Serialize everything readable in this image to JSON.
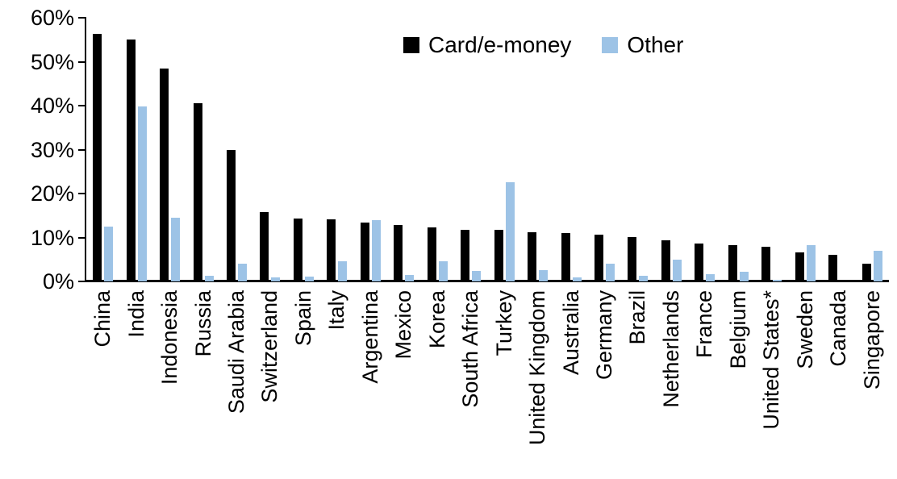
{
  "chart_data": {
    "type": "bar",
    "title": "",
    "xlabel": "",
    "ylabel": "",
    "ylim": [
      0,
      60
    ],
    "ytick_labels": [
      "0%",
      "10%",
      "20%",
      "30%",
      "40%",
      "50%",
      "60%"
    ],
    "ytick_values": [
      0,
      10,
      20,
      30,
      40,
      50,
      60
    ],
    "grid": false,
    "legend_position": "top-center",
    "categories": [
      "China",
      "India",
      "Indonesia",
      "Russia",
      "Saudi Arabia",
      "Switzerland",
      "Spain",
      "Italy",
      "Argentina",
      "Mexico",
      "Korea",
      "South Africa",
      "Turkey",
      "United Kingdom",
      "Australia",
      "Germany",
      "Brazil",
      "Netherlands",
      "France",
      "Belgium",
      "United States*",
      "Sweden",
      "Canada",
      "Singapore"
    ],
    "series": [
      {
        "name": "Card/e-money",
        "color": "#000000",
        "values": [
          56.4,
          55.0,
          48.4,
          40.5,
          29.9,
          15.7,
          14.3,
          14.2,
          13.4,
          12.9,
          12.3,
          11.8,
          11.7,
          11.2,
          11.0,
          10.7,
          10.0,
          9.3,
          8.7,
          8.2,
          7.9,
          6.6,
          6.1,
          4.0
        ]
      },
      {
        "name": "Other",
        "color": "#9DC3E6",
        "values": [
          12.4,
          39.9,
          14.5,
          1.2,
          4.0,
          1.0,
          1.1,
          4.6,
          13.9,
          1.4,
          4.5,
          2.4,
          22.6,
          2.6,
          1.0,
          4.1,
          1.2,
          4.9,
          1.7,
          2.2,
          0.3,
          8.2,
          0,
          7.0
        ]
      }
    ],
    "axis_color": "#000000",
    "background_color": "#FFFFFF"
  }
}
